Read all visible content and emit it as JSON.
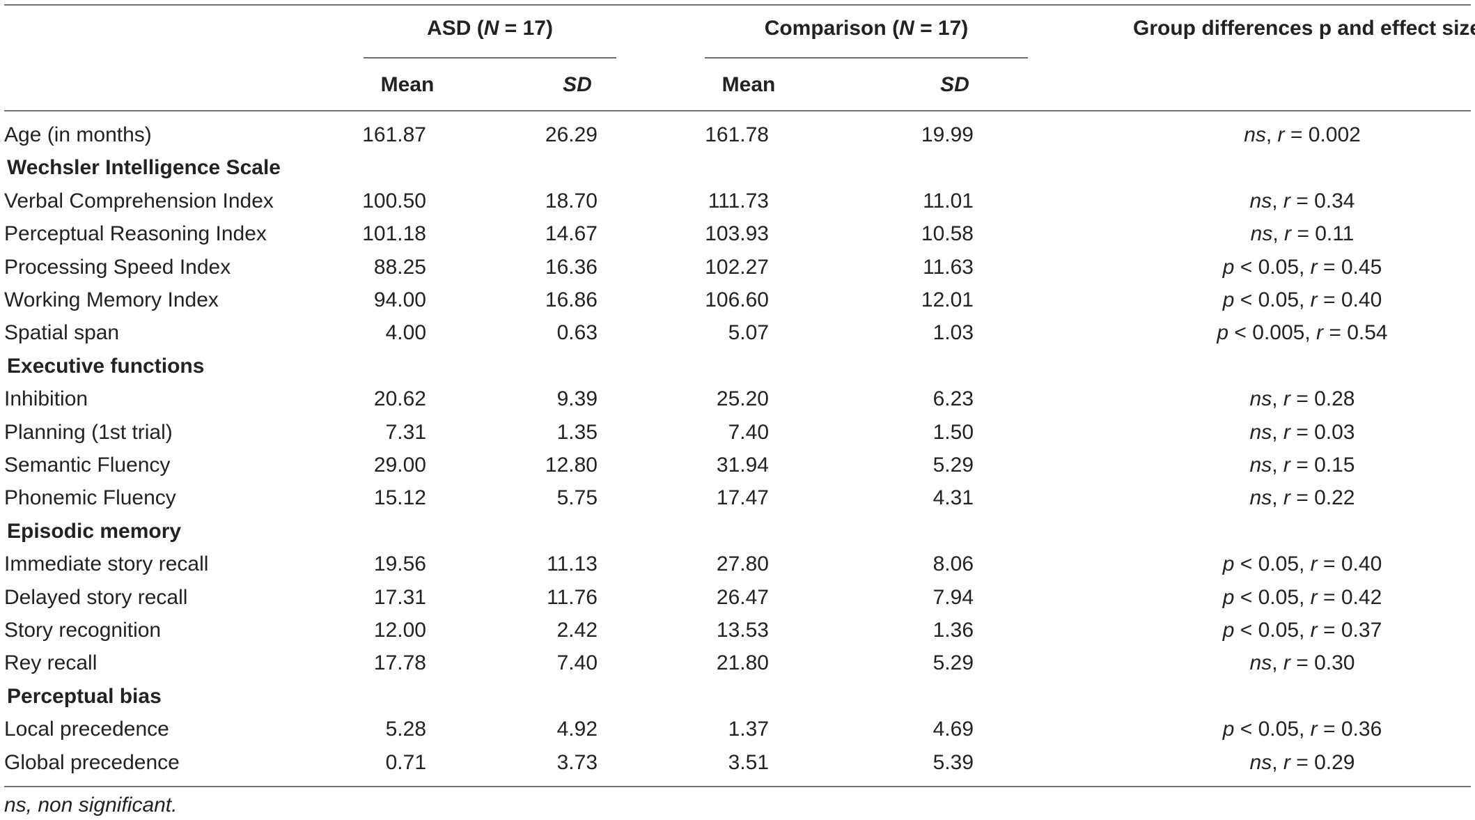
{
  "header": {
    "asd_group": {
      "label": "ASD",
      "n_open": "(",
      "n_letter": "N",
      "n_value": " = 17)"
    },
    "comparison_group": {
      "label": "Comparison",
      "n_open": "(",
      "n_letter": "N",
      "n_value": " = 17)"
    },
    "group_differences": "Group differences p and effect size",
    "mean": "Mean",
    "sd": "SD"
  },
  "rows": [
    {
      "type": "row",
      "label": "Age (in months)",
      "asd_mean": "161.87",
      "asd_sd": "26.29",
      "cmp_mean": "161.78",
      "cmp_sd": "19.99",
      "diff": [
        {
          "t": "ns",
          "i": true
        },
        {
          "t": ", ",
          "i": false
        },
        {
          "t": "r",
          "i": true
        },
        {
          "t": " = 0.002",
          "i": false
        }
      ]
    },
    {
      "type": "section",
      "label": "Wechsler Intelligence Scale"
    },
    {
      "type": "row",
      "label": "Verbal Comprehension Index",
      "asd_mean": "100.50",
      "asd_sd": "18.70",
      "cmp_mean": "111.73",
      "cmp_sd": "11.01",
      "diff": [
        {
          "t": "ns",
          "i": true
        },
        {
          "t": ", ",
          "i": false
        },
        {
          "t": "r",
          "i": true
        },
        {
          "t": " = 0.34",
          "i": false
        }
      ]
    },
    {
      "type": "row",
      "label": "Perceptual Reasoning Index",
      "asd_mean": "101.18",
      "asd_sd": "14.67",
      "cmp_mean": "103.93",
      "cmp_sd": "10.58",
      "diff": [
        {
          "t": "ns",
          "i": true
        },
        {
          "t": ", ",
          "i": false
        },
        {
          "t": "r",
          "i": true
        },
        {
          "t": " = 0.11",
          "i": false
        }
      ]
    },
    {
      "type": "row",
      "label": "Processing Speed Index",
      "asd_mean": "88.25",
      "asd_sd": "16.36",
      "cmp_mean": "102.27",
      "cmp_sd": "11.63",
      "diff": [
        {
          "t": "p",
          "i": true
        },
        {
          "t": " < 0.05, ",
          "i": false
        },
        {
          "t": "r",
          "i": true
        },
        {
          "t": " = 0.45",
          "i": false
        }
      ]
    },
    {
      "type": "row",
      "label": "Working Memory Index",
      "asd_mean": "94.00",
      "asd_sd": "16.86",
      "cmp_mean": "106.60",
      "cmp_sd": "12.01",
      "diff": [
        {
          "t": "p",
          "i": true
        },
        {
          "t": " < 0.05, ",
          "i": false
        },
        {
          "t": "r",
          "i": true
        },
        {
          "t": " = 0.40",
          "i": false
        }
      ]
    },
    {
      "type": "row",
      "label": "Spatial span",
      "asd_mean": "4.00",
      "asd_sd": "0.63",
      "cmp_mean": "5.07",
      "cmp_sd": "1.03",
      "diff": [
        {
          "t": "p",
          "i": true
        },
        {
          "t": " < 0.005, ",
          "i": false
        },
        {
          "t": "r",
          "i": true
        },
        {
          "t": " = 0.54",
          "i": false
        }
      ]
    },
    {
      "type": "section",
      "label": "Executive functions"
    },
    {
      "type": "row",
      "label": "Inhibition",
      "asd_mean": "20.62",
      "asd_sd": "9.39",
      "cmp_mean": "25.20",
      "cmp_sd": "6.23",
      "diff": [
        {
          "t": "ns",
          "i": true
        },
        {
          "t": ", ",
          "i": false
        },
        {
          "t": "r",
          "i": true
        },
        {
          "t": " = 0.28",
          "i": false
        }
      ]
    },
    {
      "type": "row",
      "label": "Planning (1st trial)",
      "asd_mean": "7.31",
      "asd_sd": "1.35",
      "cmp_mean": "7.40",
      "cmp_sd": "1.50",
      "diff": [
        {
          "t": "ns",
          "i": true
        },
        {
          "t": ", ",
          "i": false
        },
        {
          "t": "r",
          "i": true
        },
        {
          "t": " = 0.03",
          "i": false
        }
      ]
    },
    {
      "type": "row",
      "label": "Semantic Fluency",
      "asd_mean": "29.00",
      "asd_sd": "12.80",
      "cmp_mean": "31.94",
      "cmp_sd": "5.29",
      "diff": [
        {
          "t": "ns",
          "i": true
        },
        {
          "t": ", ",
          "i": false
        },
        {
          "t": "r",
          "i": true
        },
        {
          "t": " = 0.15",
          "i": false
        }
      ]
    },
    {
      "type": "row",
      "label": "Phonemic Fluency",
      "asd_mean": "15.12",
      "asd_sd": "5.75",
      "cmp_mean": "17.47",
      "cmp_sd": "4.31",
      "diff": [
        {
          "t": "ns",
          "i": true
        },
        {
          "t": ", ",
          "i": false
        },
        {
          "t": "r",
          "i": true
        },
        {
          "t": " = 0.22",
          "i": false
        }
      ]
    },
    {
      "type": "section",
      "label": "Episodic memory"
    },
    {
      "type": "row",
      "label": "Immediate story recall",
      "asd_mean": "19.56",
      "asd_sd": "11.13",
      "cmp_mean": "27.80",
      "cmp_sd": "8.06",
      "diff": [
        {
          "t": "p",
          "i": true
        },
        {
          "t": " < 0.05, ",
          "i": false
        },
        {
          "t": "r",
          "i": true
        },
        {
          "t": " = 0.40",
          "i": false
        }
      ]
    },
    {
      "type": "row",
      "label": "Delayed story recall",
      "asd_mean": "17.31",
      "asd_sd": "11.76",
      "cmp_mean": "26.47",
      "cmp_sd": "7.94",
      "diff": [
        {
          "t": "p",
          "i": true
        },
        {
          "t": " < 0.05, ",
          "i": false
        },
        {
          "t": "r",
          "i": true
        },
        {
          "t": " = 0.42",
          "i": false
        }
      ]
    },
    {
      "type": "row",
      "label": "Story recognition",
      "asd_mean": "12.00",
      "asd_sd": "2.42",
      "cmp_mean": "13.53",
      "cmp_sd": "1.36",
      "diff": [
        {
          "t": "p",
          "i": true
        },
        {
          "t": " < 0.05, ",
          "i": false
        },
        {
          "t": "r",
          "i": true
        },
        {
          "t": " = 0.37",
          "i": false
        }
      ]
    },
    {
      "type": "row",
      "label": "Rey recall",
      "asd_mean": "17.78",
      "asd_sd": "7.40",
      "cmp_mean": "21.80",
      "cmp_sd": "5.29",
      "diff": [
        {
          "t": "ns",
          "i": true
        },
        {
          "t": ", ",
          "i": false
        },
        {
          "t": "r",
          "i": true
        },
        {
          "t": " = 0.30",
          "i": false
        }
      ]
    },
    {
      "type": "section",
      "label": "Perceptual bias"
    },
    {
      "type": "row",
      "label": "Local precedence",
      "asd_mean": "5.28",
      "asd_sd": "4.92",
      "cmp_mean": "1.37",
      "cmp_sd": "4.69",
      "diff": [
        {
          "t": "p",
          "i": true
        },
        {
          "t": " < 0.05, ",
          "i": false
        },
        {
          "t": "r",
          "i": true
        },
        {
          "t": " = 0.36",
          "i": false
        }
      ]
    },
    {
      "type": "row",
      "label": "Global precedence",
      "asd_mean": "0.71",
      "asd_sd": "3.73",
      "cmp_mean": "3.51",
      "cmp_sd": "5.39",
      "diff": [
        {
          "t": "ns",
          "i": true
        },
        {
          "t": ", ",
          "i": false
        },
        {
          "t": "r",
          "i": true
        },
        {
          "t": " = 0.29",
          "i": false
        }
      ]
    }
  ],
  "footnote": "ns, non significant."
}
